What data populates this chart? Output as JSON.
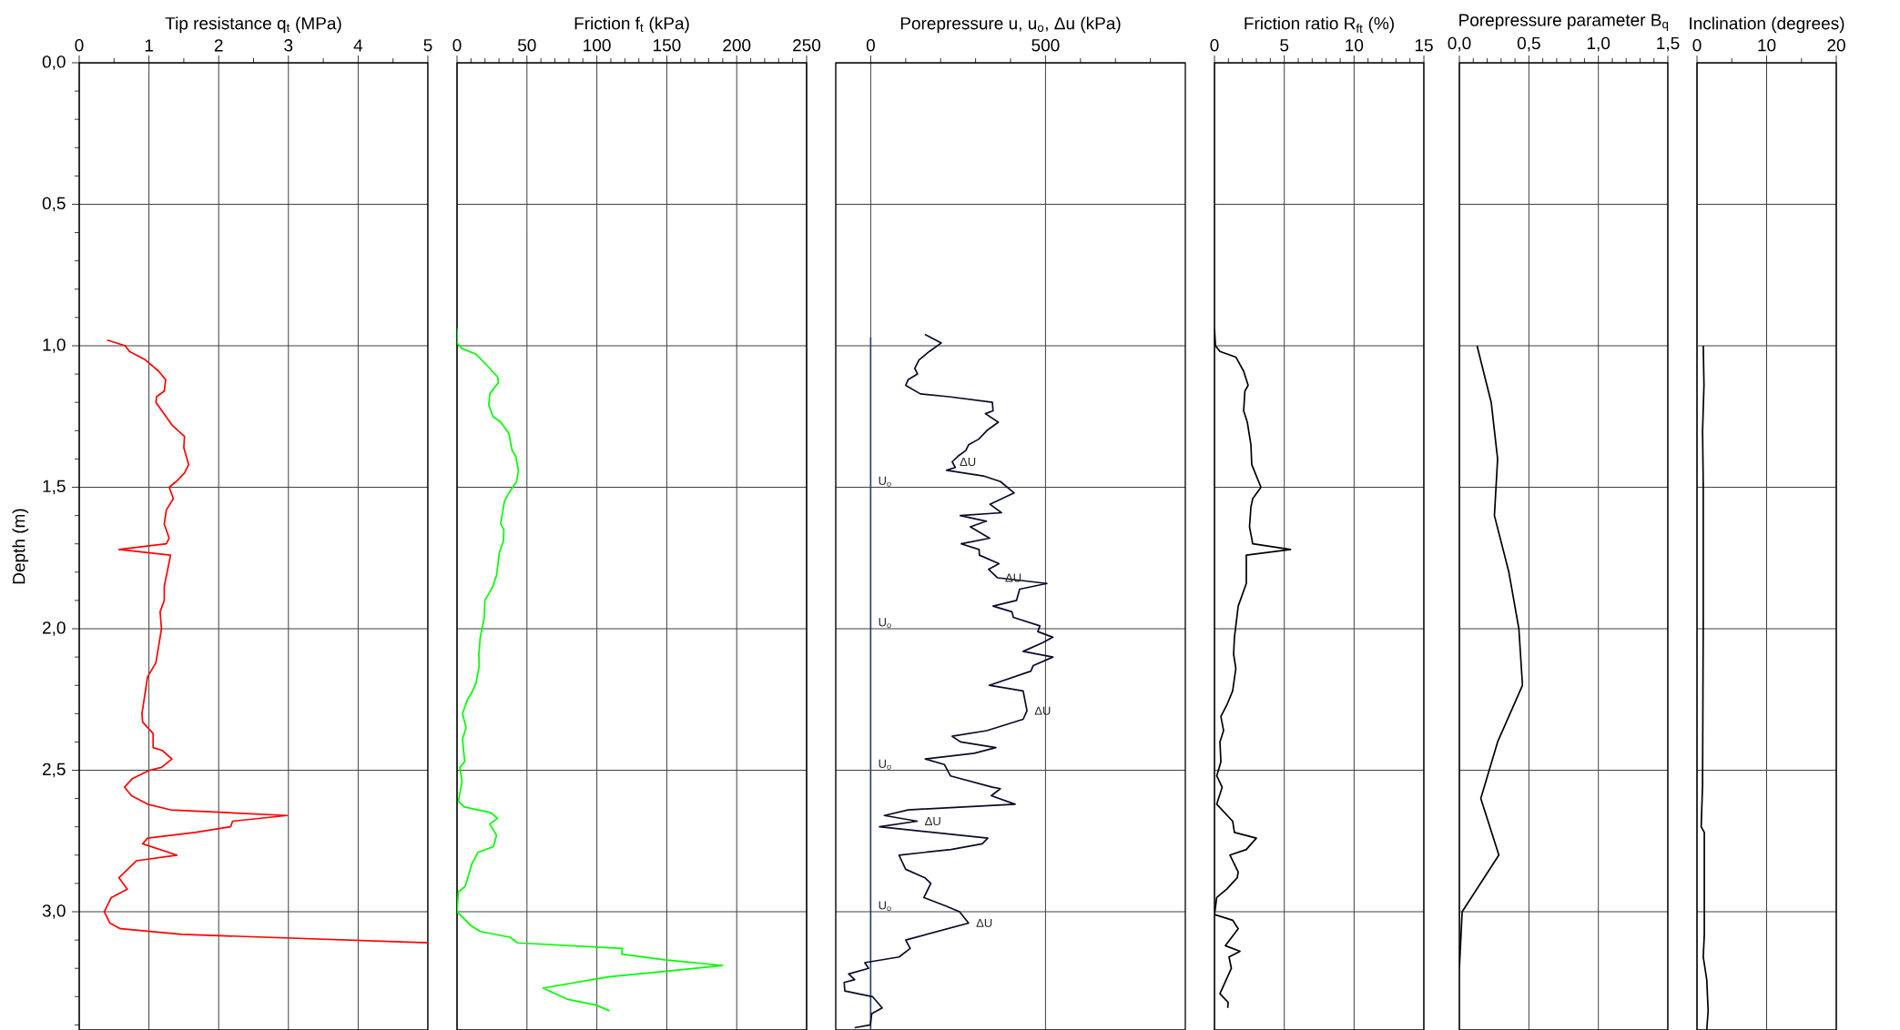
{
  "chart_data": [
    {
      "type": "line",
      "xlabel": "Tip resistance q$_{t}$  (MPa)",
      "ylabel": "Depth (m)",
      "grid": true,
      "xlim": [
        0,
        5
      ],
      "xticks": [
        0,
        {
          "value": 0.5,
          "label": null
        },
        1,
        {
          "value": 1.5,
          "label": null
        },
        2,
        {
          "value": 2.5,
          "label": null
        },
        3,
        {
          "value": 3.5,
          "label": null
        },
        4,
        {
          "value": 4.5,
          "label": null
        },
        5
      ],
      "ylim": [
        3.418,
        0
      ],
      "yticks": [
        {
          "value": 0,
          "label": "0,0"
        },
        {
          "value": 0.1,
          "label": null
        },
        {
          "value": 0.2,
          "label": null
        },
        {
          "value": 0.3,
          "label": null
        },
        {
          "value": 0.4,
          "label": null
        },
        {
          "value": 0.5,
          "label": "0,5"
        },
        {
          "value": 0.6,
          "label": null
        },
        {
          "value": 0.7,
          "label": null
        },
        {
          "value": 0.8,
          "label": null
        },
        {
          "value": 0.9,
          "label": null
        },
        {
          "value": 1.0,
          "label": "1,0"
        },
        {
          "value": 1.1,
          "label": null
        },
        {
          "value": 1.2,
          "label": null
        },
        {
          "value": 1.3,
          "label": null
        },
        {
          "value": 1.4,
          "label": null
        },
        {
          "value": 1.5,
          "label": "1,5"
        },
        {
          "value": 1.6,
          "label": null
        },
        {
          "value": 1.7,
          "label": null
        },
        {
          "value": 1.8,
          "label": null
        },
        {
          "value": 1.9,
          "label": null
        },
        {
          "value": 2.0,
          "label": "2,0"
        },
        {
          "value": 2.1,
          "label": null
        },
        {
          "value": 2.2,
          "label": null
        },
        {
          "value": 2.3,
          "label": null
        },
        {
          "value": 2.4,
          "label": null
        },
        {
          "value": 2.5,
          "label": "2,5"
        },
        {
          "value": 2.6,
          "label": null
        },
        {
          "value": 2.7,
          "label": null
        },
        {
          "value": 2.8,
          "label": null
        },
        {
          "value": 2.9,
          "label": null
        },
        {
          "value": 3.0,
          "label": "3,0"
        },
        {
          "value": 3.1,
          "label": null
        },
        {
          "value": 3.2,
          "label": null
        },
        {
          "value": 3.3,
          "label": null
        },
        {
          "value": 3.4,
          "label": null
        }
      ],
      "series": [
        {
          "color": "#ff0000",
          "x": [
            0.4,
            0.66,
            0.72,
            0.95,
            1.14,
            1.24,
            1.22,
            1.11,
            1.1,
            1.33,
            1.51,
            1.5,
            1.57,
            1.51,
            1.39,
            1.29,
            1.35,
            1.25,
            1.22,
            1.29,
            1.25,
            0.57,
            1.31,
            1.22,
            1.22,
            1.16,
            1.18,
            1.1,
            0.98,
            0.9,
            0.91,
            1.06,
            1.06,
            1.19,
            1.33,
            1.18,
            1.01,
            0.76,
            0.65,
            0.75,
            0.98,
            1.31,
            2.98,
            2.2,
            2.17,
            1.66,
            0.98,
            0.91,
            1.4,
            0.82,
            0.57,
            0.69,
            0.46,
            0.36,
            0.44,
            0.59,
            1.47,
            5.0
          ],
          "values": [
            0.98,
            1.0,
            1.02,
            1.05,
            1.09,
            1.12,
            1.16,
            1.18,
            1.2,
            1.28,
            1.32,
            1.36,
            1.42,
            1.45,
            1.48,
            1.5,
            1.54,
            1.58,
            1.63,
            1.68,
            1.7,
            1.72,
            1.74,
            1.85,
            1.9,
            1.94,
            2.0,
            2.12,
            2.17,
            2.3,
            2.33,
            2.37,
            2.42,
            2.43,
            2.46,
            2.49,
            2.5,
            2.53,
            2.56,
            2.59,
            2.62,
            2.64,
            2.66,
            2.68,
            2.7,
            2.72,
            2.74,
            2.76,
            2.8,
            2.82,
            2.88,
            2.92,
            2.95,
            3.0,
            3.04,
            3.06,
            3.08,
            3.11
          ]
        }
      ]
    },
    {
      "type": "line",
      "xlabel": "Friction f$_{t}$  (kPa)",
      "grid": true,
      "tick_labels": "x",
      "xlim": [
        0,
        250
      ],
      "xticks": [
        0,
        {
          "value": 10,
          "label": null
        },
        {
          "value": 20,
          "label": null
        },
        {
          "value": 30,
          "label": null
        },
        {
          "value": 40,
          "label": null
        },
        50,
        {
          "value": 60,
          "label": null
        },
        {
          "value": 70,
          "label": null
        },
        {
          "value": 80,
          "label": null
        },
        {
          "value": 90,
          "label": null
        },
        100,
        {
          "value": 110,
          "label": null
        },
        {
          "value": 120,
          "label": null
        },
        {
          "value": 130,
          "label": null
        },
        {
          "value": 140,
          "label": null
        },
        150,
        {
          "value": 160,
          "label": null
        },
        {
          "value": 170,
          "label": null
        },
        {
          "value": 180,
          "label": null
        },
        {
          "value": 190,
          "label": null
        },
        200,
        {
          "value": 210,
          "label": null
        },
        {
          "value": 220,
          "label": null
        },
        {
          "value": 230,
          "label": null
        },
        {
          "value": 240,
          "label": null
        },
        250
      ],
      "ylim": [
        3.418,
        0
      ],
      "yticks": [
        0,
        0.5,
        1.0,
        1.5,
        2.0,
        2.5,
        3.0
      ],
      "series": [
        {
          "color": "#00ff00",
          "x": [
            0,
            0,
            3.6,
            13.7,
            21.5,
            29,
            29.6,
            23.4,
            22.7,
            25.7,
            31.3,
            37.1,
            39.4,
            42,
            43.9,
            42.6,
            37.1,
            33.9,
            31.2,
            33.5,
            33.2,
            30.3,
            28.3,
            25.7,
            23.4,
            19.9,
            19.5,
            16.6,
            15.6,
            15.9,
            13.7,
            10.1,
            7.5,
            3.9,
            6.5,
            3.9,
            5.5,
            2.0,
            3.6,
            1.0,
            5.2,
            24.1,
            29,
            23.4,
            28.3,
            26,
            15,
            10.7,
            5.9,
            1,
            0,
            10.1,
            16.6,
            37.8,
            43.3,
            118.2,
            117.8,
            148.4,
            189.8,
            150,
            108,
            61.5,
            79.4,
            99.6,
            109
          ],
          "values": [
            0.94,
            0.99,
            1.01,
            1.03,
            1.07,
            1.11,
            1.13,
            1.17,
            1.21,
            1.25,
            1.27,
            1.31,
            1.37,
            1.39,
            1.44,
            1.48,
            1.52,
            1.55,
            1.63,
            1.65,
            1.69,
            1.73,
            1.81,
            1.85,
            1.87,
            1.9,
            1.96,
            2.03,
            2.09,
            2.13,
            2.19,
            2.23,
            2.25,
            2.3,
            2.35,
            2.39,
            2.47,
            2.49,
            2.54,
            2.61,
            2.63,
            2.65,
            2.67,
            2.69,
            2.73,
            2.77,
            2.79,
            2.83,
            2.91,
            2.93,
            3.0,
            3.05,
            3.07,
            3.09,
            3.11,
            3.13,
            3.15,
            3.17,
            3.19,
            3.21,
            3.23,
            3.27,
            3.31,
            3.33,
            3.35
          ]
        }
      ]
    },
    {
      "type": "line",
      "xlabel": "Porepressure u, u$_{o}$, Δu  (kPa)",
      "grid": true,
      "tick_labels": "x",
      "xlim": [
        -100,
        900
      ],
      "xticks": [
        0,
        {
          "value": 100,
          "label": null
        },
        {
          "value": 200,
          "label": null
        },
        {
          "value": 300,
          "label": null
        },
        {
          "value": 400,
          "label": null
        },
        500,
        {
          "value": 600,
          "label": null
        },
        {
          "value": 700,
          "label": null
        },
        {
          "value": 800,
          "label": null
        }
      ],
      "ylim": [
        3.418,
        0
      ],
      "yticks": [
        0,
        0.5,
        1.0,
        1.5,
        2.0,
        2.5,
        3.0
      ],
      "series": [
        {
          "color": "#1f3f6f",
          "x": [
            0,
            0,
            0,
            0,
            0,
            0
          ],
          "values": [
            0.97,
            1.48,
            1.98,
            2.48,
            2.98,
            3.418
          ]
        },
        {
          "color": "#0a0a2a",
          "x": [
            155,
            202,
            168,
            138,
            126,
            134,
            107,
            100,
            142,
            224,
            348,
            350,
            328,
            365,
            332,
            309,
            280,
            272,
            250,
            233,
            242,
            217,
            322,
            371,
            410,
            341,
            374,
            256,
            331,
            285,
            340,
            259,
            310,
            311,
            367,
            337,
            363,
            504,
            426,
            417,
            350,
            404,
            408,
            484,
            478,
            521,
            491,
            436,
            521,
            465,
            458,
            339,
            436,
            447,
            436,
            332,
            233,
            257,
            358,
            296,
            156,
            211,
            228,
            348,
            371,
            345,
            413,
            107,
            39,
            133,
            25,
            335,
            319,
            230,
            81,
            100,
            155,
            172,
            152,
            215,
            254,
            280,
            100,
            113,
            81,
            -17,
            -6,
            -63,
            -46,
            -76,
            -74,
            5,
            33,
            3,
            -1,
            -46
          ],
          "values": [
            0.96,
            0.99,
            1.02,
            1.05,
            1.08,
            1.1,
            1.12,
            1.14,
            1.17,
            1.18,
            1.2,
            1.23,
            1.24,
            1.27,
            1.3,
            1.33,
            1.35,
            1.37,
            1.39,
            1.41,
            1.43,
            1.44,
            1.46,
            1.48,
            1.52,
            1.56,
            1.59,
            1.6,
            1.62,
            1.64,
            1.68,
            1.7,
            1.72,
            1.74,
            1.77,
            1.79,
            1.82,
            1.84,
            1.86,
            1.9,
            1.92,
            1.94,
            1.96,
            1.99,
            2.01,
            2.03,
            2.05,
            2.08,
            2.1,
            2.13,
            2.15,
            2.2,
            2.22,
            2.29,
            2.32,
            2.36,
            2.38,
            2.4,
            2.42,
            2.44,
            2.46,
            2.48,
            2.52,
            2.56,
            2.565,
            2.59,
            2.62,
            2.64,
            2.66,
            2.68,
            2.7,
            2.74,
            2.76,
            2.78,
            2.8,
            2.85,
            2.88,
            2.9,
            2.95,
            2.98,
            3.0,
            3.04,
            3.1,
            3.13,
            3.16,
            3.18,
            3.2,
            3.22,
            3.24,
            3.25,
            3.28,
            3.3,
            3.34,
            3.36,
            3.4,
            3.41
          ]
        }
      ],
      "annotations": [
        {
          "text": "U$_{o}$",
          "x": 0,
          "y": 1.48
        },
        {
          "text": "U$_{o}$",
          "x": 0,
          "y": 1.98
        },
        {
          "text": "U$_{o}$",
          "x": 0,
          "y": 2.48
        },
        {
          "text": "U$_{o}$",
          "x": 0,
          "y": 2.98
        },
        {
          "text": "ΔU",
          "x": 233,
          "y": 1.41
        },
        {
          "text": "ΔU",
          "x": 363,
          "y": 1.82
        },
        {
          "text": "ΔU",
          "x": 447,
          "y": 2.29
        },
        {
          "text": "ΔU",
          "x": 133,
          "y": 2.68
        },
        {
          "text": "ΔU",
          "x": 280,
          "y": 3.04
        }
      ]
    },
    {
      "type": "line",
      "xlabel": "Friction ratio R$_{ft}$  (%)",
      "grid": true,
      "tick_labels": "x",
      "xlim": [
        0,
        15
      ],
      "xticks": [
        0,
        {
          "value": 1,
          "label": null
        },
        {
          "value": 2,
          "label": null
        },
        {
          "value": 3,
          "label": null
        },
        {
          "value": 4,
          "label": null
        },
        5,
        {
          "value": 6,
          "label": null
        },
        {
          "value": 7,
          "label": null
        },
        {
          "value": 8,
          "label": null
        },
        {
          "value": 9,
          "label": null
        },
        10,
        {
          "value": 11,
          "label": null
        },
        {
          "value": 12,
          "label": null
        },
        {
          "value": 13,
          "label": null
        },
        {
          "value": 14,
          "label": null
        },
        15
      ],
      "ylim": [
        3.418,
        0
      ],
      "yticks": [
        0,
        0.5,
        1.0,
        1.5,
        2.0,
        2.5,
        3.0
      ],
      "series": [
        {
          "color": "#000000",
          "x": [
            0,
            0.07,
            0.39,
            1.53,
            2.09,
            2.41,
            2.18,
            2.09,
            2.35,
            2.61,
            2.67,
            3.0,
            3.33,
            2.74,
            2.61,
            2.51,
            2.74,
            5.45,
            2.28,
            2.28,
            1.7,
            1.43,
            1.37,
            1.53,
            1.3,
            0.88,
            0.46,
            0.65,
            0.39,
            0.46,
            0.16,
            0.55,
            0.16,
            1.3,
            1.43,
            3.0,
            2.28,
            1.11,
            1.7,
            1.63,
            0.88,
            0.16,
            0,
            1.3,
            1.7,
            0.78,
            1.83,
            1.04,
            1.21,
            0.39,
            0.98,
            0.95
          ],
          "values": [
            0.94,
            1.0,
            1.02,
            1.04,
            1.09,
            1.14,
            1.16,
            1.23,
            1.27,
            1.35,
            1.42,
            1.46,
            1.5,
            1.54,
            1.57,
            1.64,
            1.7,
            1.72,
            1.74,
            1.84,
            1.92,
            2.03,
            2.09,
            2.14,
            2.22,
            2.27,
            2.31,
            2.36,
            2.4,
            2.47,
            2.52,
            2.56,
            2.62,
            2.68,
            2.72,
            2.74,
            2.78,
            2.8,
            2.86,
            2.88,
            2.92,
            2.95,
            3.01,
            3.03,
            3.06,
            3.12,
            3.14,
            3.16,
            3.2,
            3.29,
            3.32,
            3.34
          ]
        }
      ]
    },
    {
      "type": "line",
      "xlabel": "Porepressure parameter B$_{q}$",
      "grid": true,
      "tick_labels": "x",
      "xlim": [
        0,
        1.5
      ],
      "xticks": [
        {
          "value": 0,
          "label": "0,0"
        },
        {
          "value": 0.1,
          "label": null
        },
        {
          "value": 0.2,
          "label": null
        },
        {
          "value": 0.3,
          "label": null
        },
        {
          "value": 0.4,
          "label": null
        },
        {
          "value": 0.5,
          "label": "0,5"
        },
        {
          "value": 0.6,
          "label": null
        },
        {
          "value": 0.7,
          "label": null
        },
        {
          "value": 0.8,
          "label": null
        },
        {
          "value": 0.9,
          "label": null
        },
        {
          "value": 1.0,
          "label": "1,0"
        },
        {
          "value": 1.1,
          "label": null
        },
        {
          "value": 1.2,
          "label": null
        },
        {
          "value": 1.3,
          "label": null
        },
        {
          "value": 1.4,
          "label": null
        },
        {
          "value": 1.5,
          "label": "1,5"
        }
      ],
      "ylim": [
        3.418,
        0
      ],
      "yticks": [
        0,
        0.5,
        1.0,
        1.5,
        2.0,
        2.5,
        3.0
      ],
      "series": [
        {
          "color": "#000000",
          "x": [
            0.127,
            0.229,
            0.275,
            0.252,
            0.356,
            0.428,
            0.454,
            0.275,
            0.154,
            0.284,
            0.02,
            0
          ],
          "values": [
            1.0,
            1.2,
            1.4,
            1.6,
            1.8,
            2.0,
            2.2,
            2.4,
            2.6,
            2.8,
            3.0,
            3.2
          ]
        }
      ]
    },
    {
      "type": "line",
      "xlabel": "Inclination (degrees)",
      "grid": true,
      "tick_labels": "x",
      "xlim": [
        0,
        20
      ],
      "xticks": [
        0,
        {
          "value": 5,
          "label": null
        },
        10,
        {
          "value": 15,
          "label": null
        },
        20
      ],
      "ylim": [
        3.418,
        0
      ],
      "yticks": [
        0,
        0.5,
        1.0,
        1.5,
        2.0,
        2.5,
        3.0
      ],
      "series": [
        {
          "color": "#000000",
          "x": [
            0.9,
            1.0,
            0.8,
            0.9,
            0.9,
            0.8,
            0.6,
            1.05,
            1.05,
            0.9,
            1.4,
            1.6,
            1.4
          ],
          "values": [
            1.0,
            1.14,
            1.3,
            1.5,
            1.95,
            2.55,
            2.7,
            2.72,
            3.08,
            3.16,
            3.24,
            3.35,
            3.418
          ]
        }
      ]
    }
  ]
}
